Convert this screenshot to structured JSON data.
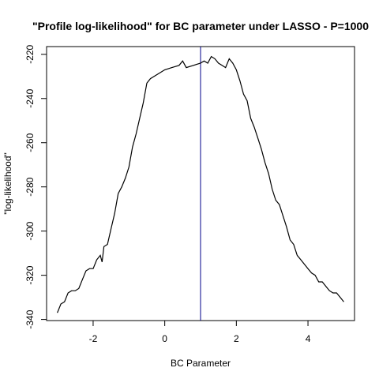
{
  "chart_data": {
    "type": "line",
    "title": "\"Profile log-likelihood\" for BC parameter under LASSO - P=1000",
    "xlabel": "BC Parameter",
    "ylabel": "\"log-likelihood\"",
    "xlim": [
      -3.3,
      5.3
    ],
    "ylim": [
      -340.5,
      -216.5
    ],
    "xticks": [
      -2,
      0,
      2,
      4
    ],
    "yticks": [
      -340,
      -320,
      -300,
      -280,
      -260,
      -240,
      -220
    ],
    "vline": {
      "x": 1.0,
      "color": "#00008b"
    },
    "line_color": "#000000",
    "series": [
      {
        "x": [
          -3.0,
          -2.9,
          -2.8,
          -2.7,
          -2.6,
          -2.5,
          -2.4,
          -2.3,
          -2.2,
          -2.1,
          -2.0,
          -1.9,
          -1.8,
          -1.75,
          -1.7,
          -1.6,
          -1.5,
          -1.4,
          -1.3,
          -1.2,
          -1.1,
          -1.0,
          -0.9,
          -0.8,
          -0.7,
          -0.6,
          -0.5,
          -0.4,
          -0.2,
          0.0,
          0.2,
          0.4,
          0.5,
          0.6,
          0.8,
          1.0,
          1.1,
          1.2,
          1.3,
          1.4,
          1.5,
          1.6,
          1.7,
          1.8,
          1.9,
          2.0,
          2.1,
          2.2,
          2.3,
          2.4,
          2.5,
          2.6,
          2.7,
          2.8,
          2.9,
          3.0,
          3.1,
          3.2,
          3.3,
          3.4,
          3.5,
          3.6,
          3.7,
          3.8,
          3.9,
          4.0,
          4.1,
          4.2,
          4.3,
          4.4,
          4.5,
          4.6,
          4.7,
          4.8,
          4.9,
          5.0
        ],
        "y": [
          -337,
          -333,
          -332,
          -328,
          -327,
          -327,
          -326,
          -322,
          -318,
          -317,
          -317,
          -313,
          -311,
          -314,
          -307,
          -306,
          -299,
          -292,
          -283,
          -280,
          -276,
          -271,
          -262,
          -256,
          -249,
          -242,
          -233,
          -231,
          -229,
          -227,
          -226,
          -225,
          -223,
          -226,
          -225,
          -224,
          -223,
          -224,
          -221,
          -222,
          -224,
          -225,
          -226,
          -222,
          -224,
          -227,
          -232,
          -238,
          -241,
          -249,
          -253,
          -258,
          -263,
          -269,
          -274,
          -281,
          -286,
          -288,
          -293,
          -298,
          -304,
          -306,
          -311,
          -313,
          -315,
          -317,
          -319,
          -320,
          -323,
          -323,
          -325,
          -327,
          -328,
          -328,
          -330,
          -332
        ]
      }
    ]
  }
}
